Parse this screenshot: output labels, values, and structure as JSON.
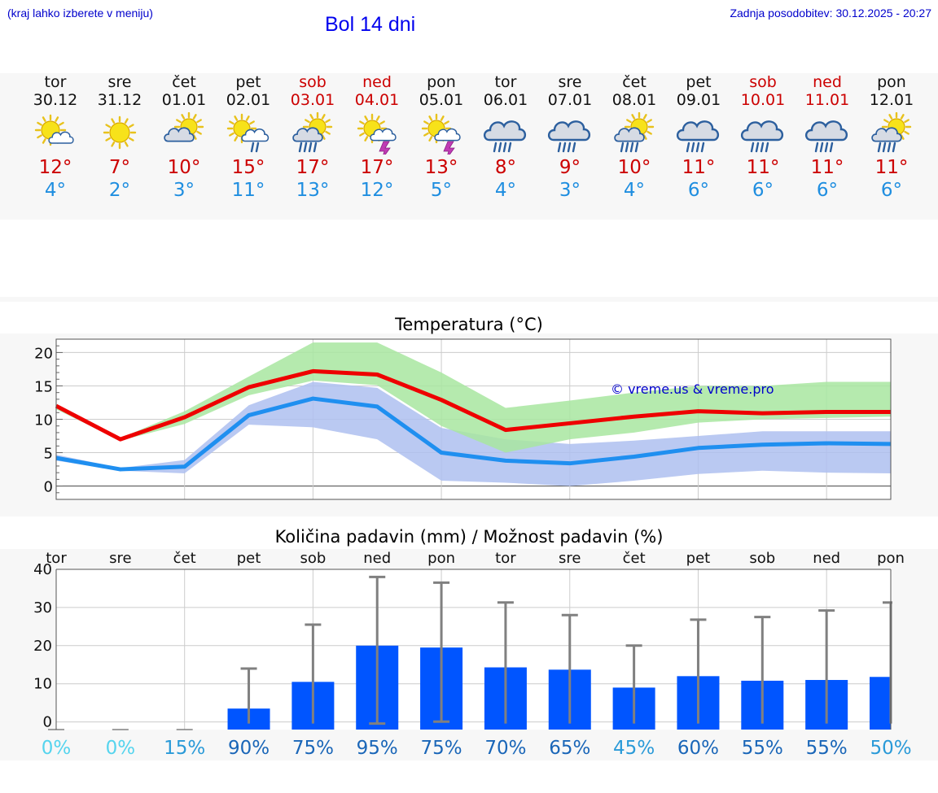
{
  "header": {
    "hint": "(kraj lahko izberete v meniju)",
    "title": "Bol 14 dni",
    "updated": "Zadnja posodobitev: 30.12.2025 - 20:27"
  },
  "days": [
    {
      "name": "tor",
      "date": "30.12",
      "weekend": false,
      "icon": "sun-cloud-icon",
      "tmax": "12°",
      "tmin": "4°"
    },
    {
      "name": "sre",
      "date": "31.12",
      "weekend": false,
      "icon": "sun-icon",
      "tmax": "7°",
      "tmin": "2°"
    },
    {
      "name": "čet",
      "date": "01.01",
      "weekend": false,
      "icon": "cloud-sun-icon",
      "tmax": "10°",
      "tmin": "3°"
    },
    {
      "name": "pet",
      "date": "02.01",
      "weekend": false,
      "icon": "sun-rain-icon",
      "tmax": "15°",
      "tmin": "11°"
    },
    {
      "name": "sob",
      "date": "03.01",
      "weekend": true,
      "icon": "sun-heavy-rain-icon",
      "tmax": "17°",
      "tmin": "13°"
    },
    {
      "name": "ned",
      "date": "04.01",
      "weekend": true,
      "icon": "sun-thunder-icon",
      "tmax": "17°",
      "tmin": "12°"
    },
    {
      "name": "pon",
      "date": "05.01",
      "weekend": false,
      "icon": "sun-thunder-icon",
      "tmax": "13°",
      "tmin": "5°"
    },
    {
      "name": "tor",
      "date": "06.01",
      "weekend": false,
      "icon": "rain-cloud-icon",
      "tmax": "8°",
      "tmin": "4°"
    },
    {
      "name": "sre",
      "date": "07.01",
      "weekend": false,
      "icon": "rain-cloud-icon",
      "tmax": "9°",
      "tmin": "3°"
    },
    {
      "name": "čet",
      "date": "08.01",
      "weekend": false,
      "icon": "sun-heavy-rain-icon",
      "tmax": "10°",
      "tmin": "4°"
    },
    {
      "name": "pet",
      "date": "09.01",
      "weekend": false,
      "icon": "rain-cloud-icon",
      "tmax": "11°",
      "tmin": "6°"
    },
    {
      "name": "sob",
      "date": "10.01",
      "weekend": true,
      "icon": "rain-cloud-icon",
      "tmax": "11°",
      "tmin": "6°"
    },
    {
      "name": "ned",
      "date": "11.01",
      "weekend": true,
      "icon": "rain-cloud-icon",
      "tmax": "11°",
      "tmin": "6°"
    },
    {
      "name": "pon",
      "date": "12.01",
      "weekend": false,
      "icon": "sun-heavy-rain-icon",
      "tmax": "11°",
      "tmin": "6°"
    }
  ],
  "colors": {
    "weekend": "#cc0000",
    "tmax_line": "#ee0000",
    "tmin_line": "#1f8ff0",
    "max_band": "#a8e6a0",
    "min_band": "#aebff0",
    "overlap_band": "#7cc4a8",
    "precip_bar": "#0055ff",
    "whisker": "#808080"
  },
  "chart_data": [
    {
      "type": "line",
      "title": "Temperatura (°C)",
      "watermark": "© vreme.us & vreme.pro",
      "ylim": [
        -2,
        22
      ],
      "yticks": [
        0,
        5,
        10,
        15,
        20
      ],
      "x": [
        0,
        1,
        2,
        3,
        4,
        5,
        6,
        7,
        8,
        9,
        10,
        11,
        12,
        13
      ],
      "series": [
        {
          "name": "tmax",
          "values": [
            12,
            7,
            10.3,
            14.8,
            17.2,
            16.7,
            12.9,
            8.4,
            9.4,
            10.4,
            11.2,
            10.9,
            11.1,
            11.1
          ],
          "band_low": [
            11.5,
            6.8,
            9.3,
            13.6,
            15.8,
            15.1,
            9,
            5,
            7,
            8,
            9.5,
            10,
            10.2,
            10.4
          ],
          "band_high": [
            12.3,
            7.2,
            11.2,
            16.4,
            21.5,
            21.5,
            17,
            11.7,
            12.8,
            14,
            15,
            15,
            15.6,
            15.6
          ]
        },
        {
          "name": "tmin",
          "values": [
            4.2,
            2.5,
            2.9,
            10.6,
            13.1,
            11.9,
            5,
            3.8,
            3.4,
            4.4,
            5.7,
            6.2,
            6.4,
            6.3
          ],
          "band_low": [
            3.8,
            2.3,
            1.9,
            9.2,
            8.8,
            7,
            0.8,
            0.5,
            0,
            0.8,
            1.8,
            2.3,
            2,
            1.9
          ],
          "band_high": [
            4.7,
            2.7,
            3.9,
            12.1,
            15.6,
            14.7,
            8.7,
            7,
            6.3,
            6.8,
            7.5,
            8.2,
            8.2,
            8.2
          ]
        }
      ]
    },
    {
      "type": "bar",
      "title": "Količina padavin (mm) / Možnost padavin (%)",
      "ylim": [
        -2,
        40
      ],
      "yticks": [
        0,
        10,
        20,
        30,
        40
      ],
      "categories": [
        "tor",
        "sre",
        "čet",
        "pet",
        "sob",
        "ned",
        "pon",
        "tor",
        "sre",
        "čet",
        "pet",
        "sob",
        "ned",
        "pon"
      ],
      "values": [
        0,
        0,
        0,
        3.5,
        10.5,
        20,
        19.5,
        14.3,
        13.7,
        9,
        12,
        10.8,
        11,
        11.8
      ],
      "whisker_low": [
        0,
        0,
        0,
        0,
        0,
        0,
        0.5,
        0,
        0,
        0,
        0,
        0,
        0,
        0
      ],
      "whisker_high": [
        0,
        0,
        0,
        14,
        25.5,
        38,
        36.5,
        31.3,
        28,
        20,
        26.8,
        27.5,
        29.2,
        31.3
      ],
      "probability": [
        "0%",
        "0%",
        "15%",
        "90%",
        "75%",
        "95%",
        "75%",
        "70%",
        "65%",
        "45%",
        "60%",
        "55%",
        "55%",
        "50%"
      ],
      "probability_colors": [
        "#55d4ee",
        "#55d4ee",
        "#2a9ad8",
        "#1a66b8",
        "#1a66b8",
        "#1a66b8",
        "#1a66b8",
        "#1a66b8",
        "#1a66b8",
        "#2a9ad8",
        "#1a66b8",
        "#1a66b8",
        "#1a66b8",
        "#2a9ad8"
      ]
    }
  ]
}
